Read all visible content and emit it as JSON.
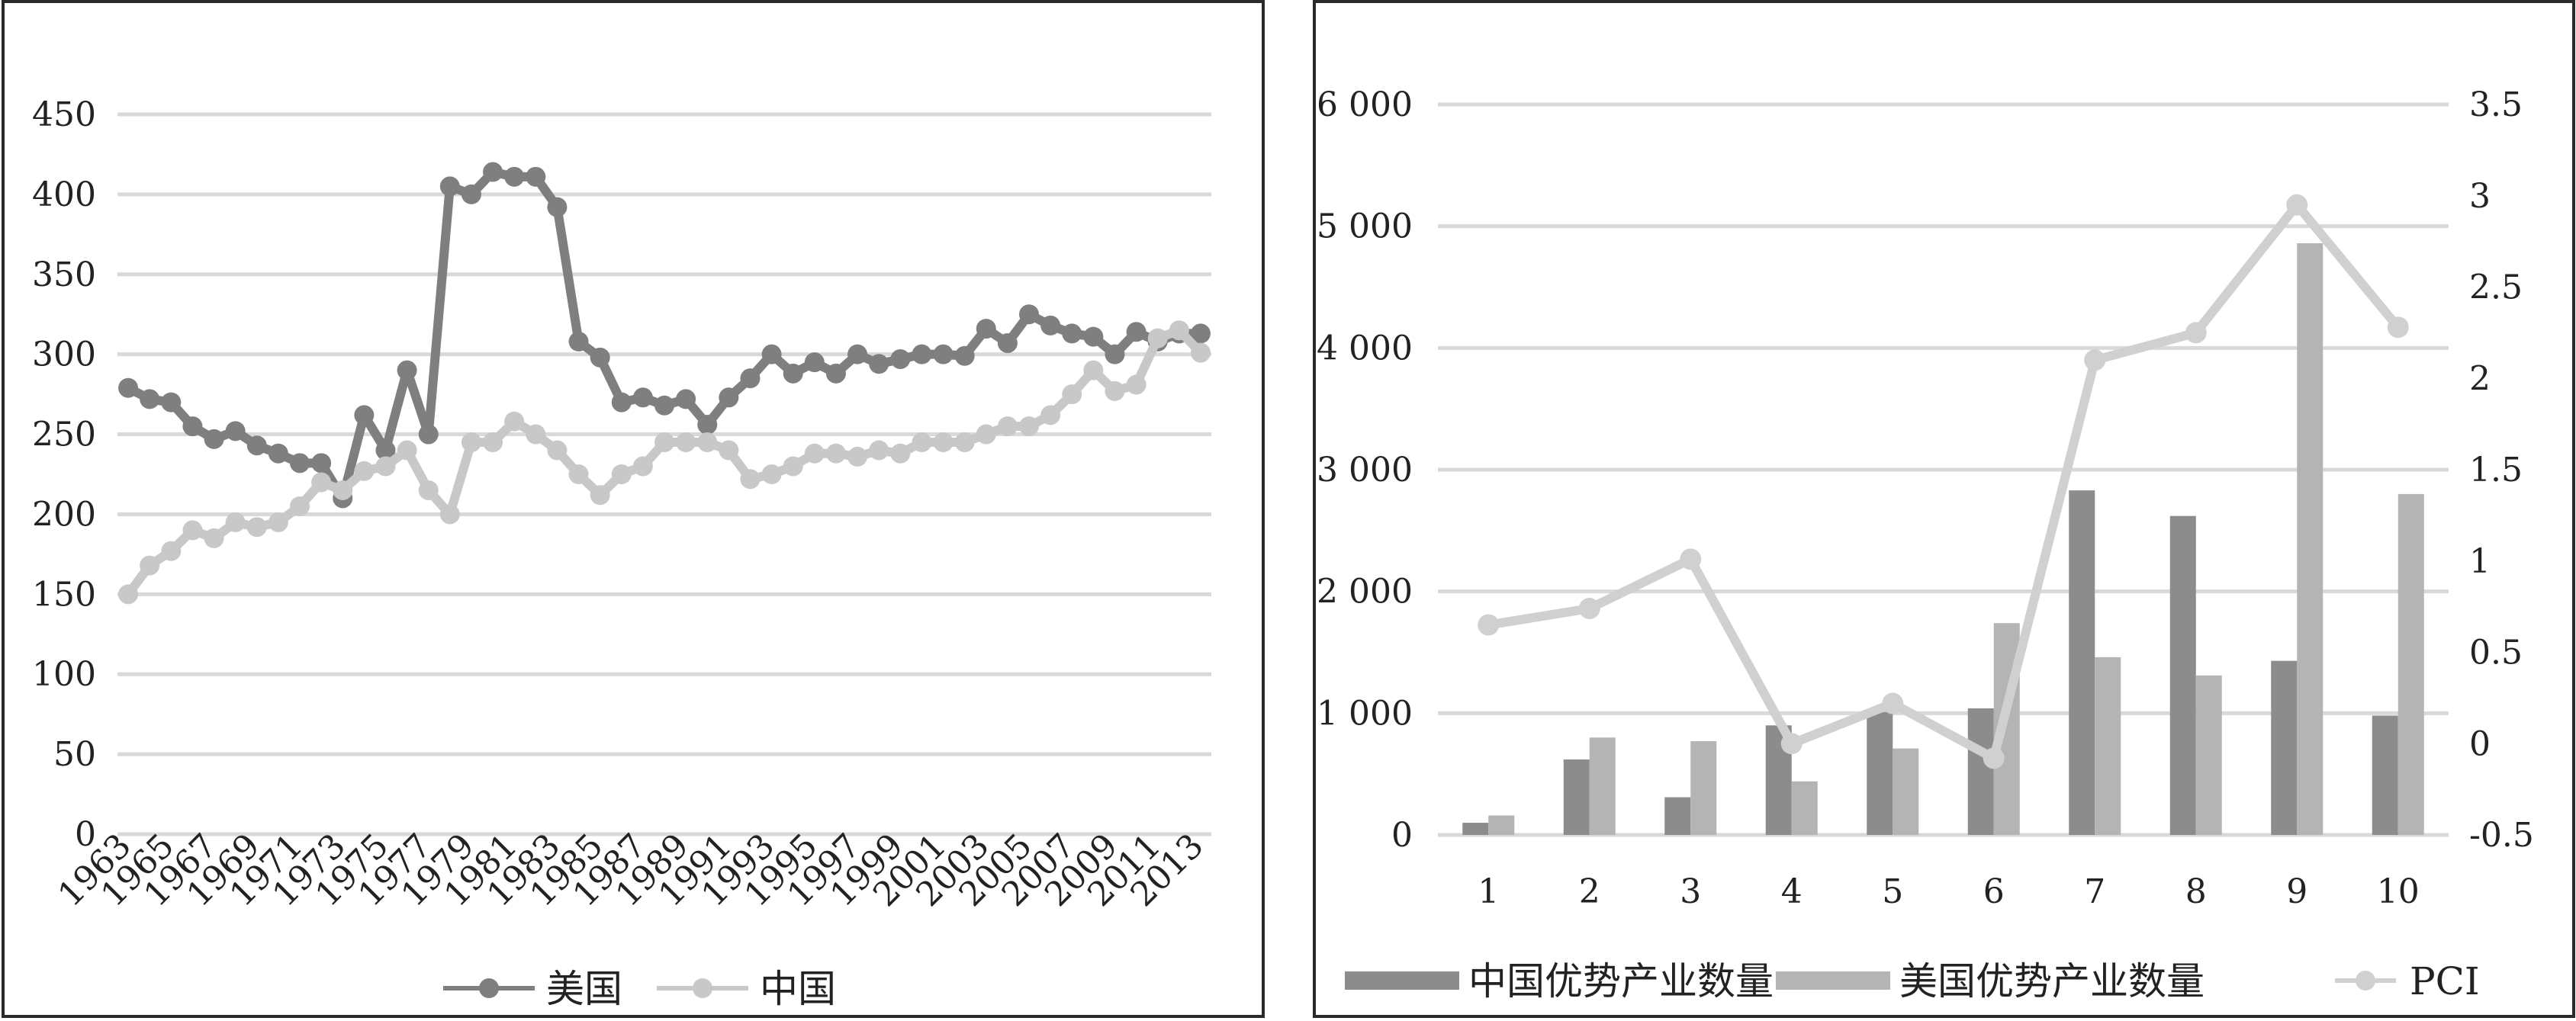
{
  "chart_data": [
    {
      "type": "line",
      "title": "",
      "xlabel": "",
      "ylabel": "",
      "ylim": [
        0,
        450
      ],
      "y_ticks": [
        "0",
        "50",
        "100",
        "150",
        "200",
        "250",
        "300",
        "350",
        "400",
        "450"
      ],
      "x_tick_labels": [
        "1963",
        "1965",
        "1967",
        "1969",
        "1971",
        "1973",
        "1975",
        "1977",
        "1979",
        "1981",
        "1983",
        "1985",
        "1987",
        "1989",
        "1991",
        "1993",
        "1995",
        "1997",
        "1999",
        "2001",
        "2003",
        "2005",
        "2007",
        "2009",
        "2011",
        "2013"
      ],
      "x": [
        1963,
        1964,
        1965,
        1966,
        1967,
        1968,
        1969,
        1970,
        1971,
        1972,
        1973,
        1974,
        1975,
        1976,
        1977,
        1978,
        1979,
        1980,
        1981,
        1982,
        1983,
        1984,
        1985,
        1986,
        1987,
        1988,
        1989,
        1990,
        1991,
        1992,
        1993,
        1994,
        1995,
        1996,
        1997,
        1998,
        1999,
        2000,
        2001,
        2002,
        2003,
        2004,
        2005,
        2006,
        2007,
        2008,
        2009,
        2010,
        2011,
        2012,
        2013
      ],
      "grid": true,
      "legend_position": "bottom",
      "series": [
        {
          "name": "美国",
          "color": "#7f7f7f",
          "values": [
            279,
            272,
            270,
            255,
            247,
            252,
            243,
            238,
            232,
            232,
            210,
            262,
            240,
            290,
            250,
            405,
            400,
            414,
            411,
            411,
            392,
            308,
            298,
            270,
            273,
            268,
            272,
            256,
            273,
            285,
            300,
            288,
            295,
            288,
            300,
            294,
            297,
            300,
            300,
            299,
            316,
            307,
            325,
            318,
            313,
            311,
            300,
            314,
            308,
            313,
            313
          ]
        },
        {
          "name": "中国",
          "color": "#c8c8c8",
          "values": [
            150,
            168,
            177,
            190,
            185,
            195,
            192,
            195,
            205,
            220,
            215,
            227,
            230,
            240,
            215,
            200,
            245,
            245,
            258,
            250,
            240,
            225,
            212,
            225,
            230,
            245,
            245,
            245,
            240,
            222,
            225,
            230,
            238,
            238,
            236,
            240,
            238,
            245,
            245,
            245,
            250,
            255,
            255,
            262,
            275,
            290,
            277,
            281,
            310,
            315,
            301
          ]
        }
      ]
    },
    {
      "type": "bar",
      "title": "",
      "xlabel": "",
      "ylabel": "",
      "categories": [
        "1",
        "2",
        "3",
        "4",
        "5",
        "6",
        "7",
        "8",
        "9",
        "10"
      ],
      "ylim": [
        0,
        6000
      ],
      "y_ticks": [
        "0",
        "1 000",
        "2 000",
        "3 000",
        "4 000",
        "5 000",
        "6 000"
      ],
      "y2lim": [
        -0.5,
        3.5
      ],
      "y2_ticks": [
        "-0.5",
        "0",
        "0.5",
        "1",
        "1.5",
        "2",
        "2.5",
        "3",
        "3.5"
      ],
      "grid": true,
      "legend_position": "bottom",
      "series": [
        {
          "name": "中国优势产业数量",
          "type": "bar",
          "color": "#8c8c8c",
          "values": [
            100,
            620,
            310,
            900,
            1010,
            1040,
            2830,
            2620,
            1430,
            980
          ]
        },
        {
          "name": "美国优势产业数量",
          "type": "bar",
          "color": "#b4b4b4",
          "values": [
            160,
            800,
            770,
            440,
            710,
            1740,
            1460,
            1310,
            4860,
            2800
          ]
        },
        {
          "name": "PCI",
          "type": "line",
          "axis": "secondary",
          "color": "#d0d0d0",
          "values": [
            0.65,
            0.74,
            1.01,
            0.0,
            0.22,
            -0.08,
            2.1,
            2.25,
            2.95,
            2.28
          ]
        }
      ]
    }
  ]
}
